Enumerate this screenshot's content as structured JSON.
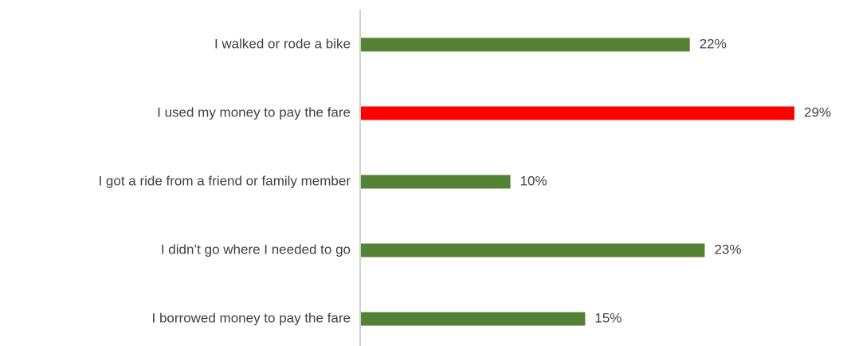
{
  "chart_data": {
    "type": "bar",
    "orientation": "horizontal",
    "categories": [
      "I walked or rode a bike",
      "I used my money to pay the fare",
      "I got a ride from a friend or family member",
      "I didn’t go where I needed to go",
      "I borrowed money to pay the fare"
    ],
    "values": [
      22,
      29,
      10,
      23,
      15
    ],
    "value_labels": [
      "22%",
      "29%",
      "10%",
      "23%",
      "15%"
    ],
    "colors": [
      "#548235",
      "#ff0000",
      "#548235",
      "#548235",
      "#548235"
    ]
  }
}
